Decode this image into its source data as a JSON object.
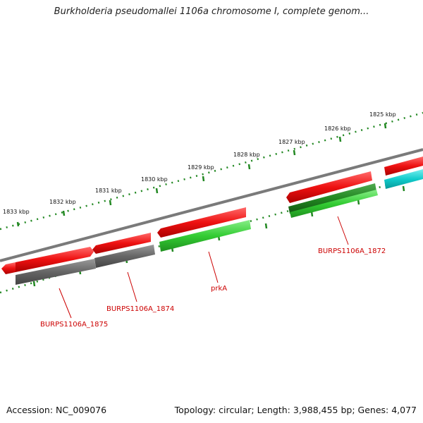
{
  "title": "Burkholderia pseudomallei 1106a chromosome I, complete genom...",
  "ruler": {
    "labels": [
      "1825 kbp",
      "1826 kbp",
      "1827 kbp",
      "1828 kbp",
      "1829 kbp",
      "1830 kbp",
      "1831 kbp",
      "1832 kbp",
      "1833 kbp"
    ]
  },
  "gene_labels": [
    "BURPS1106A_1872",
    "prkA",
    "BURPS1106A_1874",
    "BURPS1106A_1875"
  ],
  "footer": {
    "accession": "Accession: NC_009076",
    "stats": "Topology: circular; Length: 3,988,455 bp; Genes: 4,077"
  },
  "colors": {
    "cds_forward": "#ee1111",
    "gene_green": "#33cc33",
    "gene_gray": "#666666",
    "gene_cyan": "#11cccc",
    "ruler": "#228822",
    "label": "#cc0000"
  }
}
